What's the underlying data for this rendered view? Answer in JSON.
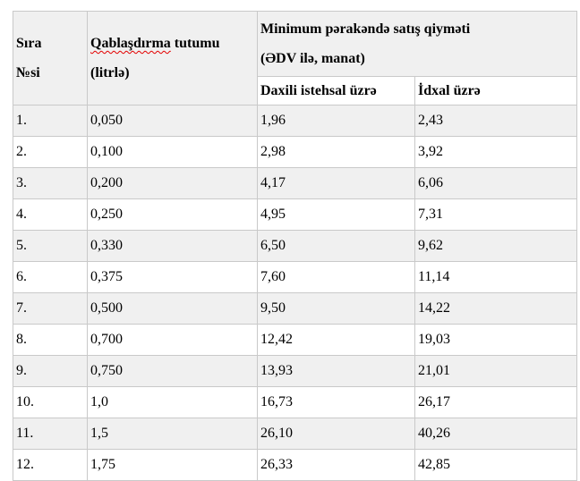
{
  "document": {
    "table": {
      "header": {
        "serial": {
          "line1": "Sıra",
          "line2": "№si"
        },
        "capacity": {
          "misspelled_word": "Qablaşdırma",
          "rest": "tutumu",
          "line2": "(litrlə)"
        },
        "price_group": {
          "line1": "Minimum pərakəndə satış qiyməti",
          "line2": "(ƏDV ilə, manat)"
        },
        "sub_domestic": "Daxili istehsal üzrə",
        "sub_import": "İdxal üzrə"
      },
      "rows": [
        {
          "no": "1.",
          "capacity": "0,050",
          "domestic": "1,96",
          "import": "2,43"
        },
        {
          "no": "2.",
          "capacity": "0,100",
          "domestic": "2,98",
          "import": "3,92"
        },
        {
          "no": "3.",
          "capacity": "0,200",
          "domestic": "4,17",
          "import": "6,06"
        },
        {
          "no": "4.",
          "capacity": "0,250",
          "domestic": "4,95",
          "import": "7,31"
        },
        {
          "no": "5.",
          "capacity": "0,330",
          "domestic": "6,50",
          "import": "9,62"
        },
        {
          "no": "6.",
          "capacity": "0,375",
          "domestic": "7,60",
          "import": "11,14"
        },
        {
          "no": "7.",
          "capacity": "0,500",
          "domestic": "9,50",
          "import": "14,22"
        },
        {
          "no": "8.",
          "capacity": "0,700",
          "domestic": "12,42",
          "import": "19,03"
        },
        {
          "no": "9.",
          "capacity": "0,750",
          "domestic": "13,93",
          "import": "21,01"
        },
        {
          "no": "10.",
          "capacity": "1,0",
          "domestic": "16,73",
          "import": "26,17"
        },
        {
          "no": "11.",
          "capacity": "1,5",
          "domestic": "26,10",
          "import": "40,26"
        },
        {
          "no": "12.",
          "capacity": "1,75",
          "domestic": "26,33",
          "import": "42,85"
        }
      ],
      "colors": {
        "header_bg": "#f0f0f0",
        "alt_row_bg": "#f0f0f0",
        "border": "#c9c9c9",
        "spellcheck_underline": "#e30000",
        "text": "#000000"
      }
    }
  }
}
